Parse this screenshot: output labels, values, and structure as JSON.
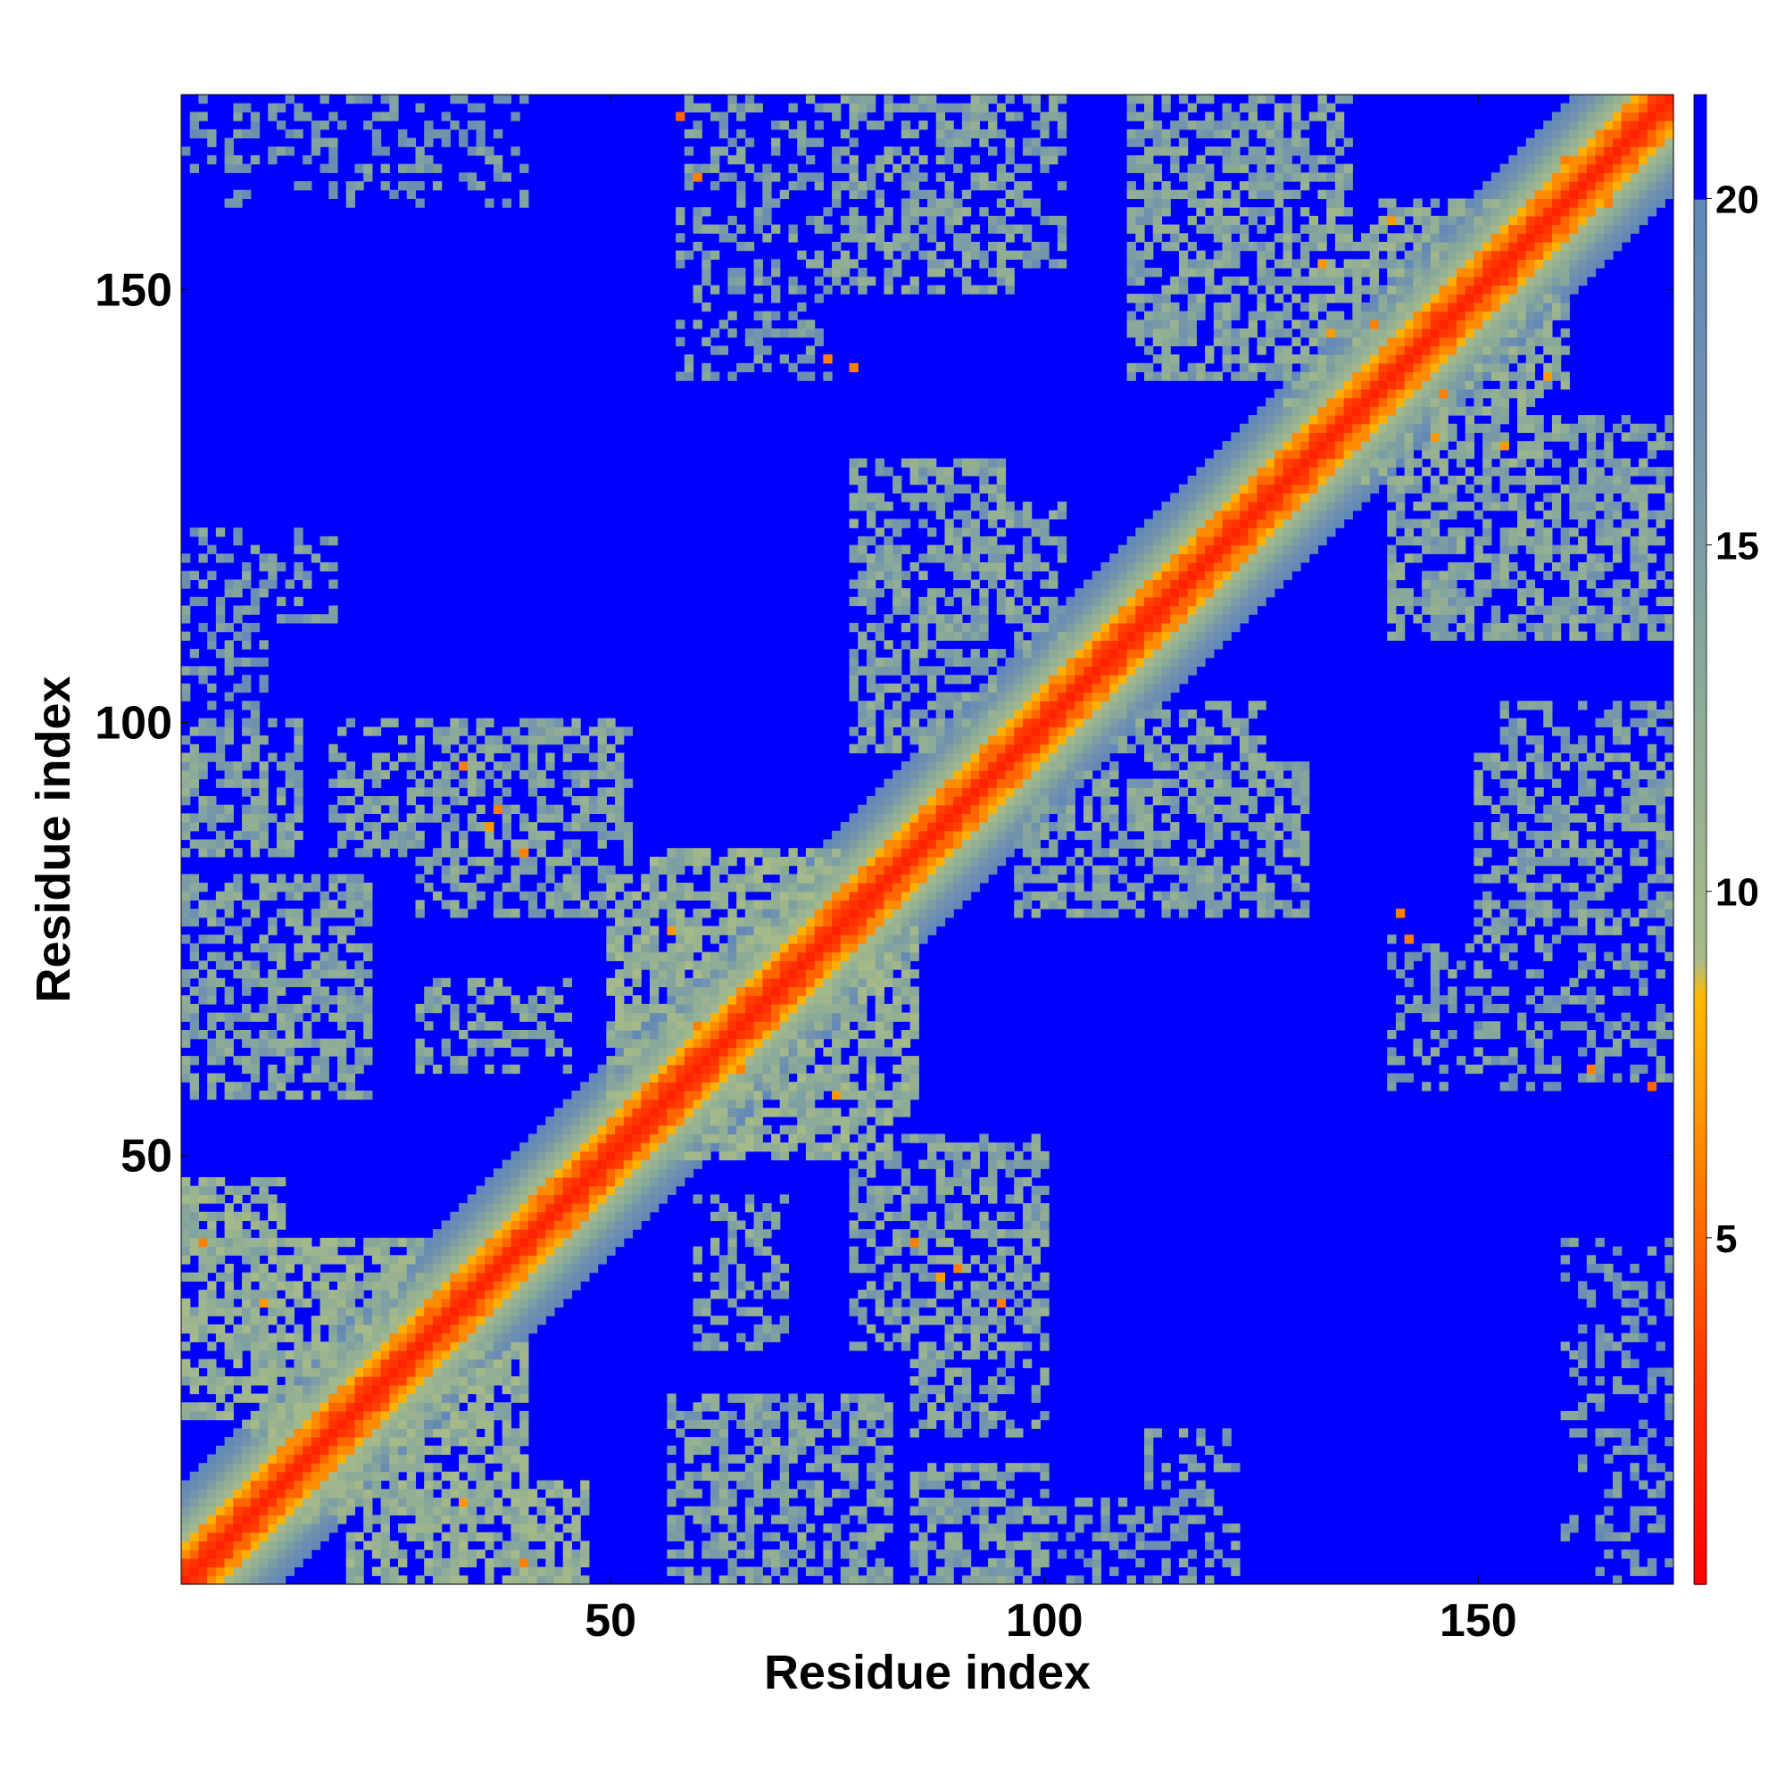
{
  "chart_data": {
    "type": "heatmap",
    "title": "",
    "xlabel": "Residue index",
    "ylabel": "Residue index",
    "n_residues": 172,
    "xlim": [
      0.5,
      172.5
    ],
    "ylim": [
      0.5,
      172.5
    ],
    "x_ticks": [
      50,
      100,
      150
    ],
    "y_ticks": [
      50,
      100,
      150
    ],
    "colorbar": {
      "range": [
        0,
        21.5
      ],
      "ticks": [
        5,
        10,
        15,
        20
      ],
      "stops": [
        {
          "value": 0,
          "color": "#ff0000"
        },
        {
          "value": 3,
          "color": "#ff3300"
        },
        {
          "value": 5,
          "color": "#ff6600"
        },
        {
          "value": 7,
          "color": "#ff9900"
        },
        {
          "value": 8.5,
          "color": "#ffbb00"
        },
        {
          "value": 9,
          "color": "#a8bb88"
        },
        {
          "value": 13,
          "color": "#8aaa99"
        },
        {
          "value": 17,
          "color": "#6f90b0"
        },
        {
          "value": 20,
          "color": "#5f88b8"
        },
        {
          "value": 20.01,
          "color": "#0000ff"
        },
        {
          "value": 21.5,
          "color": "#0000ff"
        }
      ]
    },
    "background_value": 21,
    "diagonal_profile": [
      {
        "offset": 0,
        "value": 2
      },
      {
        "offset": 1,
        "value": 3
      },
      {
        "offset": 2,
        "value": 5
      },
      {
        "offset": 3,
        "value": 6.5
      },
      {
        "offset": 4,
        "value": 8
      },
      {
        "offset": 5,
        "value": 10
      },
      {
        "offset": 6,
        "value": 11.5
      },
      {
        "offset": 7,
        "value": 13
      },
      {
        "offset": 8,
        "value": 15
      },
      {
        "offset": 9,
        "value": 16.5
      },
      {
        "offset": 10,
        "value": 18
      },
      {
        "offset": 11,
        "value": 19.5
      }
    ],
    "contact_regions": [
      {
        "i": [
          1,
          12
        ],
        "j": [
          20,
          47
        ],
        "value": 12,
        "density": 0.75
      },
      {
        "i": [
          20,
          47
        ],
        "j": [
          1,
          12
        ],
        "value": 12,
        "density": 0.75
      },
      {
        "i": [
          15,
          40
        ],
        "j": [
          8,
          28
        ],
        "value": 12,
        "density": 0.7
      },
      {
        "i": [
          8,
          28
        ],
        "j": [
          15,
          40
        ],
        "value": 12,
        "density": 0.7
      },
      {
        "i": [
          1,
          14
        ],
        "j": [
          85,
          100
        ],
        "value": 14,
        "density": 0.6
      },
      {
        "i": [
          85,
          100
        ],
        "j": [
          1,
          14
        ],
        "value": 14,
        "density": 0.6
      },
      {
        "i": [
          1,
          18
        ],
        "j": [
          112,
          122
        ],
        "value": 15,
        "density": 0.35
      },
      {
        "i": [
          112,
          122
        ],
        "j": [
          1,
          18
        ],
        "value": 15,
        "density": 0.35
      },
      {
        "i": [
          18,
          48
        ],
        "j": [
          85,
          100
        ],
        "value": 14,
        "density": 0.5
      },
      {
        "i": [
          85,
          100
        ],
        "j": [
          18,
          48
        ],
        "value": 14,
        "density": 0.5
      },
      {
        "i": [
          28,
          45
        ],
        "j": [
          60,
          70
        ],
        "value": 14,
        "density": 0.5
      },
      {
        "i": [
          60,
          70
        ],
        "j": [
          28,
          45
        ],
        "value": 14,
        "density": 0.5
      },
      {
        "i": [
          50,
          85
        ],
        "j": [
          55,
          82
        ],
        "value": 12,
        "density": 0.7
      },
      {
        "i": [
          55,
          82
        ],
        "j": [
          50,
          85
        ],
        "value": 12,
        "density": 0.7
      },
      {
        "i": [
          57,
          82
        ],
        "j": [
          1,
          22
        ],
        "value": 14,
        "density": 0.55
      },
      {
        "i": [
          1,
          22
        ],
        "j": [
          57,
          82
        ],
        "value": 14,
        "density": 0.55
      },
      {
        "i": [
          78,
          100
        ],
        "j": [
          28,
          52
        ],
        "value": 14,
        "density": 0.55
      },
      {
        "i": [
          28,
          52
        ],
        "j": [
          78,
          100
        ],
        "value": 14,
        "density": 0.55
      },
      {
        "i": [
          58,
          75
        ],
        "j": [
          140,
          172
        ],
        "value": 15,
        "density": 0.35
      },
      {
        "i": [
          140,
          172
        ],
        "j": [
          58,
          75
        ],
        "value": 15,
        "density": 0.35
      },
      {
        "i": [
          76,
          96
        ],
        "j": [
          150,
          172
        ],
        "value": 14,
        "density": 0.55
      },
      {
        "i": [
          150,
          172
        ],
        "j": [
          76,
          96
        ],
        "value": 14,
        "density": 0.55
      },
      {
        "i": [
          78,
          95
        ],
        "j": [
          97,
          130
        ],
        "value": 14,
        "density": 0.55
      },
      {
        "i": [
          97,
          130
        ],
        "j": [
          78,
          95
        ],
        "value": 14,
        "density": 0.55
      },
      {
        "i": [
          108,
          125
        ],
        "j": [
          82,
          102
        ],
        "value": 14,
        "density": 0.5
      },
      {
        "i": [
          82,
          102
        ],
        "j": [
          108,
          125
        ],
        "value": 14,
        "density": 0.5
      },
      {
        "i": [
          110,
          135
        ],
        "j": [
          140,
          172
        ],
        "value": 14,
        "density": 0.6
      },
      {
        "i": [
          140,
          172
        ],
        "j": [
          110,
          135
        ],
        "value": 14,
        "density": 0.6
      },
      {
        "i": [
          128,
          160
        ],
        "j": [
          130,
          158
        ],
        "value": 13,
        "density": 0.6
      },
      {
        "i": [
          130,
          158
        ],
        "j": [
          128,
          160
        ],
        "value": 13,
        "density": 0.6
      },
      {
        "i": [
          153,
          172
        ],
        "j": [
          84,
          102
        ],
        "value": 15,
        "density": 0.45
      },
      {
        "i": [
          84,
          102
        ],
        "j": [
          153,
          172
        ],
        "value": 15,
        "density": 0.45
      },
      {
        "i": [
          160,
          172
        ],
        "j": [
          1,
          40
        ],
        "value": 16,
        "density": 0.3
      },
      {
        "i": [
          1,
          40
        ],
        "j": [
          160,
          172
        ],
        "value": 16,
        "density": 0.3
      },
      {
        "i": [
          90,
          115
        ],
        "j": [
          1,
          10
        ],
        "value": 16,
        "density": 0.35
      },
      {
        "i": [
          1,
          10
        ],
        "j": [
          90,
          115
        ],
        "value": 16,
        "density": 0.35
      }
    ],
    "hot_contacts": [
      {
        "i": 3,
        "j": 40,
        "value": 6
      },
      {
        "i": 40,
        "j": 3,
        "value": 6
      },
      {
        "i": 10,
        "j": 33,
        "value": 7
      },
      {
        "i": 33,
        "j": 10,
        "value": 7
      },
      {
        "i": 33,
        "j": 95,
        "value": 6
      },
      {
        "i": 95,
        "j": 33,
        "value": 6
      },
      {
        "i": 36,
        "j": 88,
        "value": 7
      },
      {
        "i": 88,
        "j": 36,
        "value": 7
      },
      {
        "i": 58,
        "j": 170,
        "value": 5
      },
      {
        "i": 170,
        "j": 58,
        "value": 5
      },
      {
        "i": 75,
        "j": 142,
        "value": 6
      },
      {
        "i": 142,
        "j": 75,
        "value": 6
      },
      {
        "i": 60,
        "j": 65,
        "value": 6
      },
      {
        "i": 65,
        "j": 60,
        "value": 6
      },
      {
        "i": 57,
        "j": 76,
        "value": 7
      },
      {
        "i": 76,
        "j": 57,
        "value": 7
      },
      {
        "i": 90,
        "j": 37,
        "value": 6
      },
      {
        "i": 37,
        "j": 90,
        "value": 6
      },
      {
        "i": 132,
        "j": 153,
        "value": 7
      },
      {
        "i": 153,
        "j": 132,
        "value": 7
      },
      {
        "i": 138,
        "j": 146,
        "value": 6
      },
      {
        "i": 146,
        "j": 138,
        "value": 6
      },
      {
        "i": 145,
        "j": 133,
        "value": 7
      },
      {
        "i": 133,
        "j": 145,
        "value": 7
      },
      {
        "i": 141,
        "j": 78,
        "value": 6
      },
      {
        "i": 78,
        "j": 141,
        "value": 6
      },
      {
        "i": 163,
        "j": 60,
        "value": 6
      },
      {
        "i": 60,
        "j": 163,
        "value": 6
      },
      {
        "i": 165,
        "j": 160,
        "value": 6
      },
      {
        "i": 160,
        "j": 165,
        "value": 6
      },
      {
        "i": 85,
        "j": 40,
        "value": 6
      },
      {
        "i": 40,
        "j": 85,
        "value": 6
      },
      {
        "i": 158,
        "j": 140,
        "value": 7
      },
      {
        "i": 140,
        "j": 158,
        "value": 7
      }
    ]
  }
}
